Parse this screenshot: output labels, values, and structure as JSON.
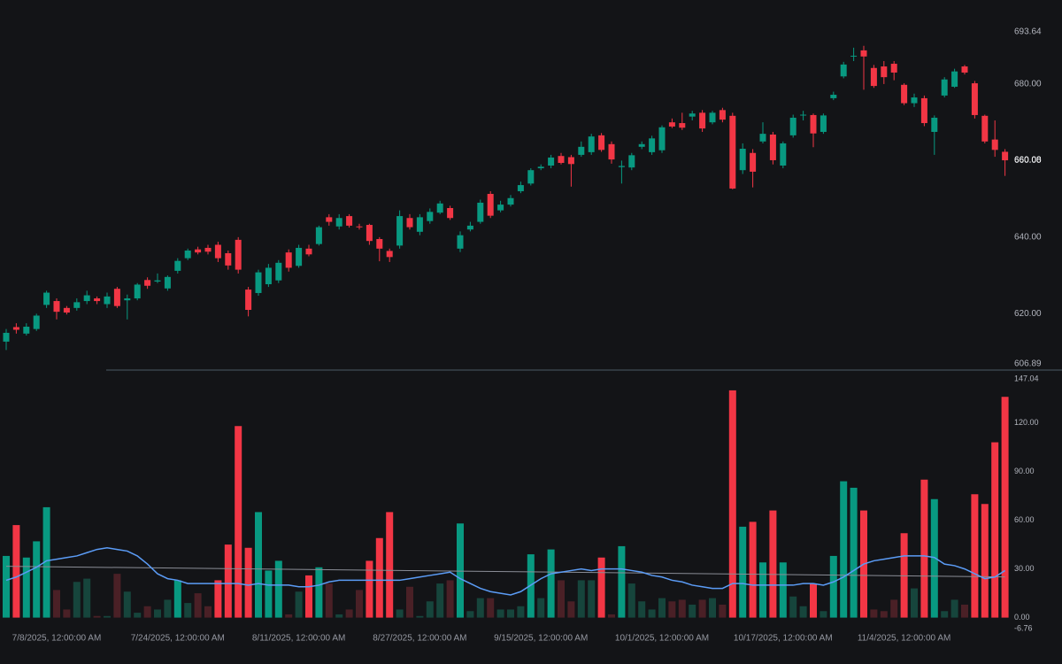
{
  "chart_data": [
    {
      "type": "candlestick",
      "grid": false,
      "up_color": "#089981",
      "down_color": "#f23645",
      "ylim": [
        605.27,
        701.96
      ],
      "yticks": [
        606.89,
        {
          "value": 620,
          "label": "620.00"
        },
        {
          "value": 640,
          "label": "640.00"
        },
        {
          "value": 660,
          "label": "660.00"
        },
        {
          "value": 680,
          "label": "680.00"
        },
        693.64
      ],
      "last_price": 660.08,
      "open": [
        612.7,
        616.5,
        614.8,
        616,
        622.3,
        623.3,
        621.5,
        621.5,
        623.3,
        624,
        622.5,
        626.5,
        623.5,
        624,
        628.8,
        628.4,
        626.6,
        631.2,
        634.5,
        636.8,
        637.2,
        638,
        635.8,
        639.3,
        626.3,
        625.4,
        627.7,
        628.7,
        636,
        632.5,
        637,
        638.2,
        645.2,
        642.8,
        645.5,
        642.8,
        643.2,
        639.5,
        636.4,
        637.8,
        645,
        641.4,
        644.2,
        646.4,
        647.6,
        637,
        642,
        644,
        651.3,
        647,
        648.5,
        652,
        654,
        658,
        658.7,
        661.2,
        660.9,
        661.5,
        662.2,
        666.6,
        664.3,
        658.3,
        658.2,
        663.6,
        662.2,
        662.7,
        670,
        669.8,
        671.5,
        672.5,
        670,
        673.2,
        671.7,
        657.5,
        662,
        665,
        666.8,
        658.7,
        666.6,
        671.8,
        671.9,
        667.5,
        676.3,
        682,
        687.2,
        688.8,
        684.2,
        684.6,
        685.3,
        679.8,
        675,
        676.3,
        667.5,
        677,
        679.3,
        684.6,
        680.2,
        671.7,
        665.5,
        662.3
      ],
      "high": [
        616,
        617.5,
        617.5,
        620,
        626,
        624,
        622,
        624,
        626,
        624.5,
        625.5,
        627,
        625,
        628,
        629.5,
        630.5,
        630,
        634.5,
        637,
        637.5,
        638,
        638.8,
        636.5,
        640,
        627,
        631.5,
        633,
        634,
        636.8,
        638,
        638,
        643,
        646,
        646,
        646,
        643.5,
        643.5,
        640,
        637,
        647,
        646,
        646,
        647.5,
        649.5,
        648.2,
        641.5,
        644,
        649.8,
        652,
        649.5,
        651,
        654.5,
        658,
        659,
        661.5,
        662,
        661.5,
        665,
        667,
        667.2,
        665,
        660,
        662,
        665,
        666.5,
        669.2,
        671,
        672.5,
        673,
        673.2,
        673,
        673.8,
        672.5,
        664.5,
        663,
        670,
        667.5,
        665,
        672,
        673,
        672.3,
        672.3,
        678,
        685.8,
        689.5,
        690,
        685,
        686,
        686,
        680.2,
        677.5,
        677,
        671.8,
        681.8,
        684,
        685,
        680.8,
        672,
        670.5,
        663
      ],
      "low": [
        610.5,
        614.8,
        614.3,
        615.5,
        621.5,
        618.5,
        619.8,
        620.8,
        622.5,
        622.5,
        621.5,
        621.5,
        618.5,
        623.5,
        626.5,
        628,
        626,
        630.5,
        634,
        635.5,
        635.5,
        633.5,
        631.5,
        630.5,
        619.3,
        624.7,
        627,
        628,
        631,
        632,
        635,
        637.8,
        643,
        642,
        642.5,
        642,
        638,
        633.7,
        633.5,
        637,
        642,
        640.5,
        643.5,
        646,
        644.5,
        636.1,
        641.5,
        643.5,
        645,
        646.5,
        648,
        651.5,
        653.5,
        657.5,
        658,
        659,
        653.2,
        661,
        661.5,
        662.3,
        659.2,
        654,
        657.5,
        663,
        661.5,
        662,
        668.5,
        668,
        670.5,
        667.5,
        669.5,
        670,
        652.5,
        656.5,
        653,
        664.5,
        659,
        658,
        666,
        670.5,
        663.5,
        667,
        675.8,
        681.5,
        686,
        678.5,
        679,
        680,
        681,
        674.5,
        674,
        669,
        661.5,
        676.5,
        679,
        682.5,
        671,
        664.5,
        661,
        656
      ],
      "close": [
        615.0,
        615.8,
        616.6,
        619.5,
        625.5,
        620.5,
        620.3,
        623,
        624.8,
        623.3,
        624.5,
        622,
        624,
        627.6,
        627.3,
        628.7,
        629.6,
        633.8,
        636.5,
        636,
        636.2,
        634.5,
        632.6,
        631.5,
        621,
        630.8,
        632,
        633.3,
        632,
        637.2,
        635.5,
        642.6,
        644,
        645,
        643,
        642.6,
        639,
        637,
        634.8,
        645.5,
        642.6,
        645.2,
        646.6,
        648.8,
        645,
        640.5,
        643,
        649,
        645.6,
        648.5,
        650.2,
        653.6,
        657.5,
        658.4,
        660.8,
        659.4,
        659.1,
        663.6,
        666.3,
        662.8,
        660.3,
        658.6,
        661.4,
        664.3,
        665.8,
        668.7,
        668.9,
        668.6,
        672.3,
        668.4,
        672.5,
        670.7,
        652.7,
        663.1,
        657.1,
        667,
        660.1,
        664.5,
        671.2,
        672.0,
        667.1,
        671.8,
        677.2,
        685.1,
        687.4,
        687.2,
        679.5,
        681.8,
        683,
        675,
        676.5,
        669.8,
        671.2,
        681.2,
        683.3,
        683,
        671.9,
        665,
        662.8,
        660.08
      ]
    },
    {
      "type": "volume",
      "up_color": "#089981",
      "down_color": "#f23645",
      "dim_up_color": "#16453c",
      "dim_down_color": "#4a2026",
      "ylim": [
        -6.76,
        147.04
      ],
      "yticks": [
        147.04,
        {
          "value": 120,
          "label": "120.00"
        },
        {
          "value": 90,
          "label": "90.00"
        },
        {
          "value": 60,
          "label": "60.00"
        },
        {
          "value": 30,
          "label": "30.00"
        },
        {
          "value": 0,
          "label": "0.00"
        },
        -6.76
      ],
      "categories": [
        null,
        null,
        null,
        null,
        null,
        "7/8/2025, 12:00:00 AM",
        null,
        null,
        null,
        null,
        null,
        null,
        null,
        null,
        null,
        null,
        null,
        "7/24/2025, 12:00:00 AM",
        null,
        null,
        null,
        null,
        null,
        null,
        null,
        null,
        null,
        null,
        null,
        "8/11/2025, 12:00:00 AM",
        null,
        null,
        null,
        null,
        null,
        null,
        null,
        null,
        null,
        null,
        null,
        "8/27/2025, 12:00:00 AM",
        null,
        null,
        null,
        null,
        null,
        null,
        null,
        null,
        null,
        null,
        null,
        "9/15/2025, 12:00:00 AM",
        null,
        null,
        null,
        null,
        null,
        null,
        null,
        null,
        null,
        null,
        null,
        "10/1/2025, 12:00:00 AM",
        null,
        null,
        null,
        null,
        null,
        null,
        null,
        null,
        null,
        null,
        null,
        "10/17/2025, 12:00:00 AM",
        null,
        null,
        null,
        null,
        null,
        null,
        null,
        null,
        null,
        null,
        null,
        "11/4/2025, 12:00:00 AM",
        null,
        null,
        null,
        null,
        null,
        null,
        null,
        null,
        null,
        null
      ],
      "values": [
        38,
        57,
        37,
        47,
        68,
        17,
        5,
        22,
        24,
        1,
        1,
        27,
        16,
        3,
        7,
        5,
        11,
        23,
        9,
        15,
        7,
        23,
        45,
        118,
        43,
        65,
        29,
        35,
        2,
        16,
        26,
        31,
        21,
        2,
        5,
        17,
        35,
        49,
        65,
        5,
        19,
        1,
        10,
        21,
        23,
        58,
        4,
        12,
        12,
        5,
        5,
        7,
        39,
        12,
        42,
        23,
        10,
        23,
        23,
        37,
        2,
        44,
        21,
        10,
        5,
        12,
        10,
        11,
        8,
        11,
        12,
        8,
        140,
        56,
        59,
        34,
        66,
        34,
        13,
        7,
        21,
        4,
        38,
        84,
        80,
        66,
        5,
        4,
        11,
        52,
        18,
        85,
        73,
        4,
        11,
        8,
        76,
        70,
        108,
        136
      ],
      "ma": {
        "color": "#5b9cf6",
        "values": [
          23,
          25,
          28,
          31,
          35,
          36,
          37,
          38,
          40,
          42,
          43,
          42,
          41,
          38,
          33,
          27,
          24,
          23,
          21,
          21,
          21,
          21,
          21,
          21,
          20,
          21,
          20,
          20,
          20,
          19,
          19,
          20,
          22,
          23,
          23,
          23,
          23,
          23,
          23,
          23,
          24,
          25,
          26,
          27,
          28,
          24,
          21,
          18,
          16,
          15,
          14,
          16,
          20,
          24,
          27,
          28,
          29,
          30,
          29,
          30,
          30,
          30,
          29,
          28,
          26,
          25,
          23,
          22,
          20,
          19,
          18,
          18,
          21,
          21,
          20,
          20,
          20,
          20,
          20,
          21,
          21,
          20,
          22,
          25,
          29,
          33,
          35,
          36,
          37,
          38,
          38,
          38,
          37,
          33,
          32,
          30,
          27,
          24,
          25,
          29
        ]
      },
      "trend": {
        "color": "#8a8d96",
        "values": [
          31.6,
          25.1
        ]
      }
    }
  ]
}
